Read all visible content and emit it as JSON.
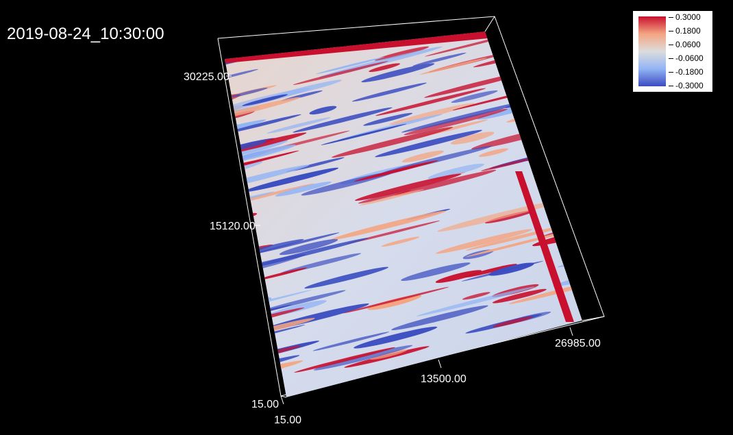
{
  "timestamp": "2019-08-24_10:30:00",
  "axes": {
    "y_ticks": [
      "30225.00",
      "15120.00",
      "15.00"
    ],
    "x_ticks": [
      "15.00",
      "13500.00",
      "26985.00"
    ]
  },
  "legend": {
    "ticks": [
      "0.3000",
      "0.1800",
      "0.0600",
      "-0.0600",
      "-0.1800",
      "-0.3000"
    ],
    "colormap": "coolwarm",
    "colors": {
      "high": "#c8102e",
      "mid_high": "#f4a582",
      "mid": "#dcdcdc",
      "mid_low": "#92b4f4",
      "low": "#3a4cc0"
    }
  },
  "background_color": "#000000"
}
